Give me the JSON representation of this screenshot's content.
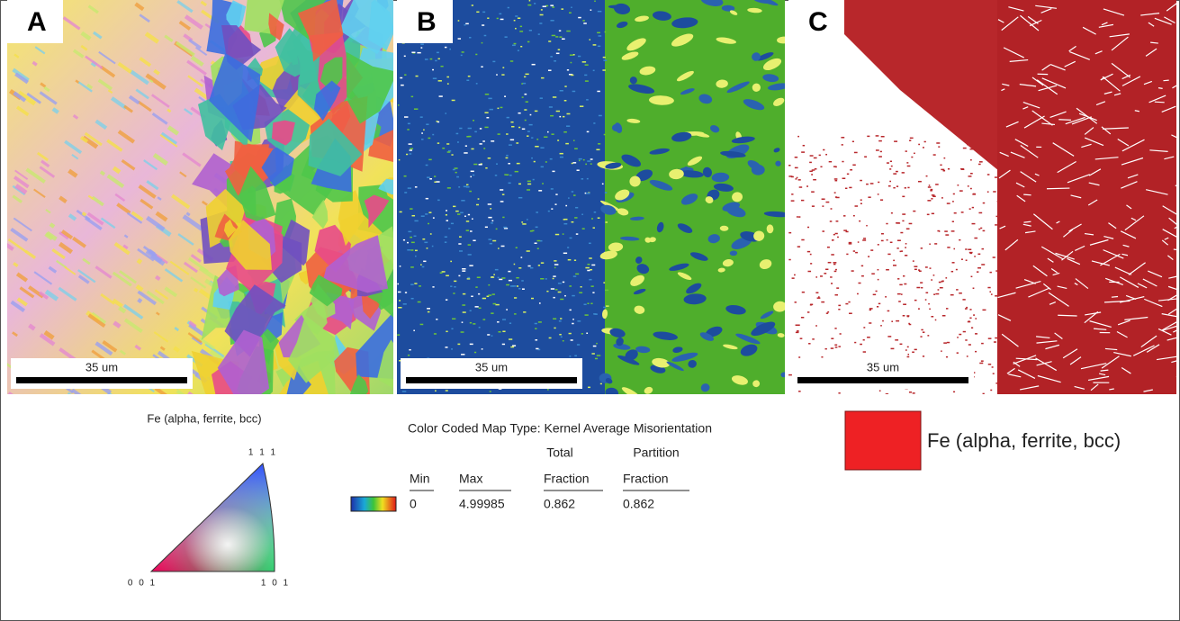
{
  "panels": [
    {
      "label": "A",
      "scale_bar": "35 um"
    },
    {
      "label": "B",
      "scale_bar": "35 um"
    },
    {
      "label": "C",
      "scale_bar": "35 um"
    }
  ],
  "legend_a": {
    "title": "Fe (alpha, ferrite, bcc)",
    "corners": [
      "1 1 1",
      "0 0 1",
      "1 0 1"
    ]
  },
  "legend_b": {
    "title": "Color Coded Map Type: Kernel Average Misorientation",
    "header_top": [
      "Total",
      "Partition"
    ],
    "header": [
      "Min",
      "Max",
      "Fraction",
      "Fraction"
    ],
    "row": [
      0,
      4.99985,
      0.862,
      0.862
    ]
  },
  "legend_c": {
    "label": "Fe (alpha, ferrite, bcc)"
  }
}
